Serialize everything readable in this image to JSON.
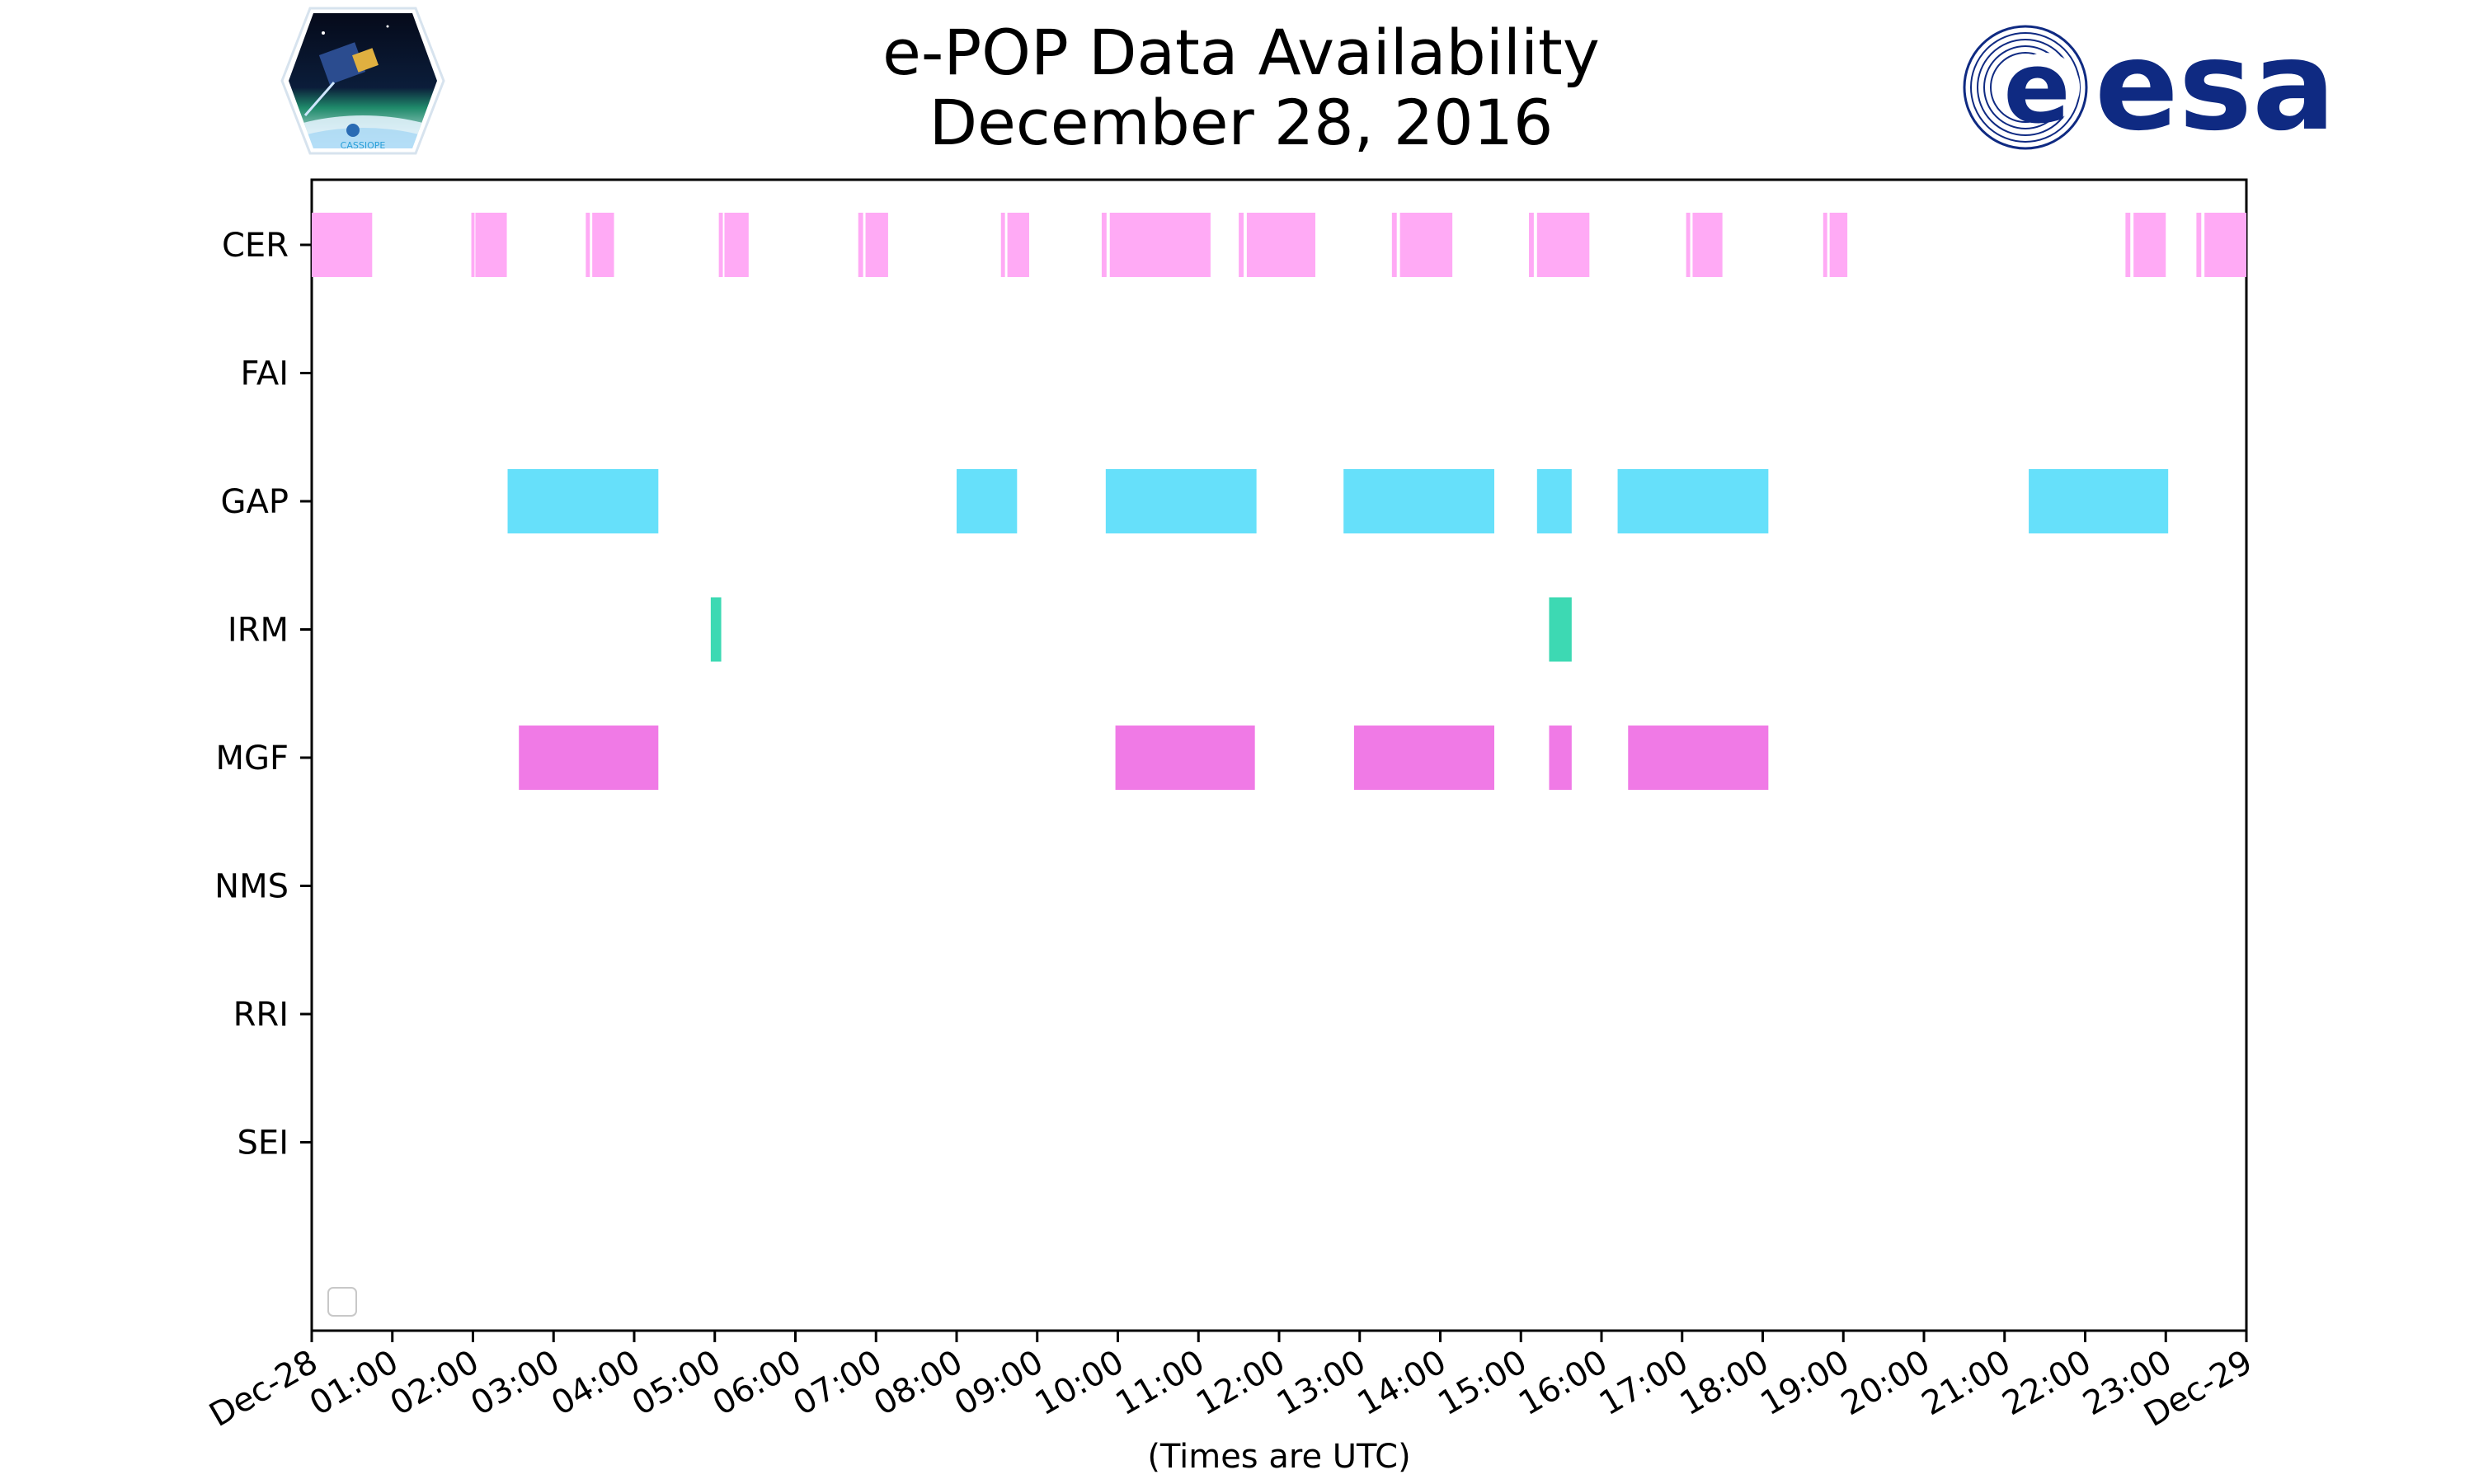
{
  "chart_data": {
    "type": "timeline",
    "title": "e-POP Data Availability",
    "subtitle": "December 28, 2016",
    "xlabel": "(Times are UTC)",
    "xlim_hours": [
      0,
      24
    ],
    "x_ticks": [
      "Dec-28",
      "01:00",
      "02:00",
      "03:00",
      "04:00",
      "05:00",
      "06:00",
      "07:00",
      "08:00",
      "09:00",
      "10:00",
      "11:00",
      "12:00",
      "13:00",
      "14:00",
      "15:00",
      "16:00",
      "17:00",
      "18:00",
      "19:00",
      "20:00",
      "21:00",
      "22:00",
      "23:00",
      "Dec-29"
    ],
    "categories": [
      "CER",
      "FAI",
      "GAP",
      "IRM",
      "MGF",
      "NMS",
      "RRI",
      "SEI"
    ],
    "legend": {
      "placement": "lower-left",
      "entries": []
    },
    "grid": false,
    "series": [
      {
        "category": "CER",
        "color": "#ffaaf5",
        "intervals": [
          [
            0.0,
            0.75
          ],
          [
            1.98,
            2.02
          ],
          [
            2.03,
            2.42
          ],
          [
            3.4,
            3.45
          ],
          [
            3.48,
            3.75
          ],
          [
            5.05,
            5.1
          ],
          [
            5.12,
            5.42
          ],
          [
            6.78,
            6.84
          ],
          [
            6.87,
            7.15
          ],
          [
            8.55,
            8.6
          ],
          [
            8.63,
            8.9
          ],
          [
            9.8,
            9.86
          ],
          [
            9.9,
            11.15
          ],
          [
            11.5,
            11.56
          ],
          [
            11.6,
            12.45
          ],
          [
            13.4,
            13.46
          ],
          [
            13.5,
            14.15
          ],
          [
            15.1,
            15.16
          ],
          [
            15.2,
            15.85
          ],
          [
            17.05,
            17.1
          ],
          [
            17.13,
            17.5
          ],
          [
            18.75,
            18.8
          ],
          [
            18.83,
            19.05
          ],
          [
            22.5,
            22.56
          ],
          [
            22.6,
            23.0
          ],
          [
            23.38,
            23.44
          ],
          [
            23.48,
            24.0
          ]
        ]
      },
      {
        "category": "FAI",
        "color": "#ffaaf5",
        "intervals": []
      },
      {
        "category": "GAP",
        "color": "#66e0fa",
        "intervals": [
          [
            2.43,
            4.3
          ],
          [
            8.0,
            8.75
          ],
          [
            9.85,
            11.72
          ],
          [
            12.8,
            14.67
          ],
          [
            15.2,
            15.63
          ],
          [
            16.2,
            18.07
          ],
          [
            21.3,
            23.03
          ]
        ]
      },
      {
        "category": "IRM",
        "color": "#3dd9b3",
        "intervals": [
          [
            4.95,
            5.08
          ],
          [
            15.35,
            15.63
          ]
        ]
      },
      {
        "category": "MGF",
        "color": "#f07ae6",
        "intervals": [
          [
            2.57,
            4.3
          ],
          [
            9.97,
            11.7
          ],
          [
            12.93,
            14.67
          ],
          [
            15.35,
            15.63
          ],
          [
            16.33,
            18.07
          ]
        ]
      },
      {
        "category": "NMS",
        "color": "#f07ae6",
        "intervals": []
      },
      {
        "category": "RRI",
        "color": "#f07ae6",
        "intervals": []
      },
      {
        "category": "SEI",
        "color": "#f07ae6",
        "intervals": []
      }
    ]
  },
  "logos": {
    "cassiope_label": "CASSIOPE",
    "esa_label": "esa",
    "esa_color": "#0f2a82"
  }
}
